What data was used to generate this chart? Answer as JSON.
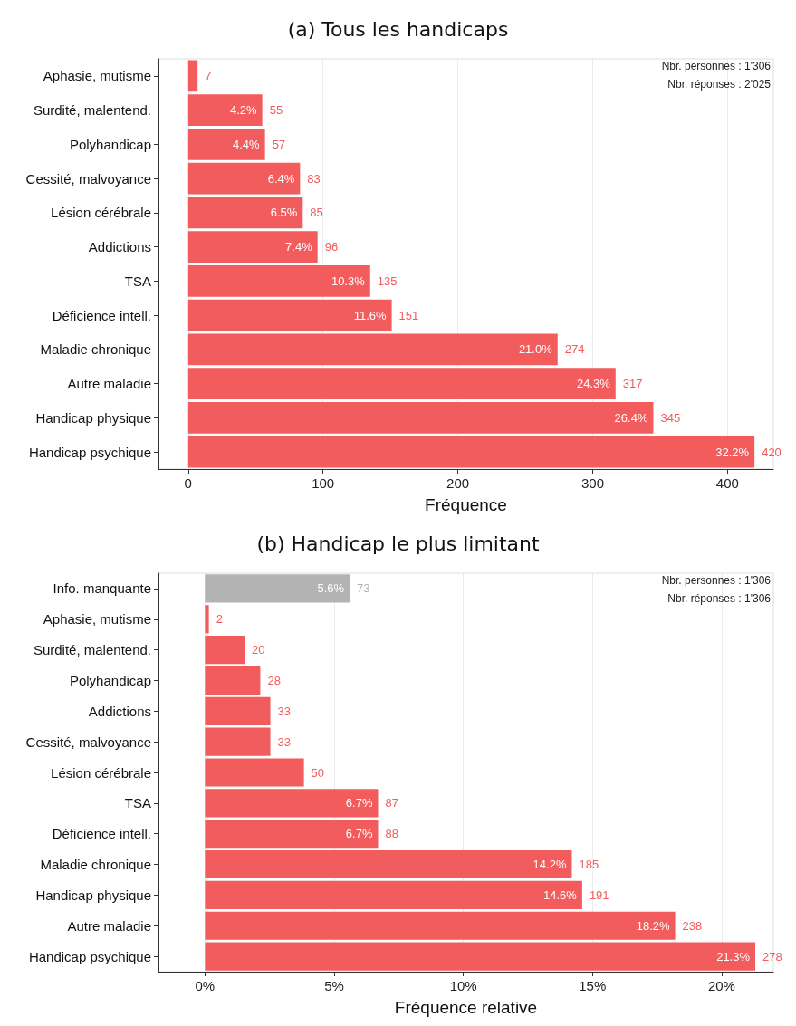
{
  "chart_data": [
    {
      "type": "bar",
      "orientation": "horizontal",
      "title": "(a) Tous les handicaps",
      "xlabel": "Fréquence",
      "categories": [
        "Aphasie, mutisme",
        "Surdité, malentend.",
        "Polyhandicap",
        "Cessité, malvoyance",
        "Lésion cérébrale",
        "Addictions",
        "TSA",
        "Déficience intell.",
        "Maladie chronique",
        "Autre maladie",
        "Handicap physique",
        "Handicap psychique"
      ],
      "values": [
        7,
        55,
        57,
        83,
        85,
        96,
        135,
        151,
        274,
        317,
        345,
        420
      ],
      "colors": [
        "#f25c5c",
        "#f25c5c",
        "#f25c5c",
        "#f25c5c",
        "#f25c5c",
        "#f25c5c",
        "#f25c5c",
        "#f25c5c",
        "#f25c5c",
        "#f25c5c",
        "#f25c5c",
        "#f25c5c"
      ],
      "data_labels": true,
      "xlim": [
        -22,
        434
      ],
      "xticks": [
        0,
        100,
        200,
        300,
        400
      ],
      "grid": "x",
      "annotations": [
        "Nbr. personnes : 1'306",
        "Nbr. réponses : 2'025",
        {
          "text": "4.2%",
          "x": 55,
          "y": "Surdité, malentend."
        },
        {
          "text": "4.4%",
          "x": 57,
          "y": "Polyhandicap"
        },
        {
          "text": "6.4%",
          "x": 83,
          "y": "Cessité, malvoyance"
        },
        {
          "text": "6.5%",
          "x": 85,
          "y": "Lésion cérébrale"
        },
        {
          "text": "7.4%",
          "x": 96,
          "y": "Addictions"
        },
        {
          "text": "10.3%",
          "x": 135,
          "y": "TSA"
        },
        {
          "text": "11.6%",
          "x": 151,
          "y": "Déficience intell."
        },
        {
          "text": "21.0%",
          "x": 274,
          "y": "Maladie chronique"
        },
        {
          "text": "24.3%",
          "x": 317,
          "y": "Autre maladie"
        },
        {
          "text": "26.4%",
          "x": 345,
          "y": "Handicap physique"
        },
        {
          "text": "32.2%",
          "x": 420,
          "y": "Handicap psychique"
        }
      ]
    },
    {
      "type": "bar",
      "orientation": "horizontal",
      "title": "(b) Handicap le plus limitant",
      "xlabel": "Fréquence relative",
      "categories": [
        "Info. manquante",
        "Aphasie, mutisme",
        "Surdité, malentend.",
        "Polyhandicap",
        "Addictions",
        "Cessité, malvoyance",
        "Lésion cérébrale",
        "TSA",
        "Déficience intell.",
        "Maladie chronique",
        "Handicap physique",
        "Autre maladie",
        "Handicap psychique"
      ],
      "values": [
        5.6,
        0.15,
        1.53,
        2.14,
        2.53,
        2.53,
        3.83,
        6.7,
        6.7,
        14.2,
        14.6,
        18.2,
        21.3
      ],
      "colors": [
        "#b3b3b3",
        "#f25c5c",
        "#f25c5c",
        "#f25c5c",
        "#f25c5c",
        "#f25c5c",
        "#f25c5c",
        "#f25c5c",
        "#f25c5c",
        "#f25c5c",
        "#f25c5c",
        "#f25c5c",
        "#f25c5c"
      ],
      "value_labels": [
        "5.6%",
        null,
        null,
        null,
        null,
        null,
        null,
        "6.7%",
        "6.7%",
        "14.2%",
        "14.6%",
        "18.2%",
        "21.3%"
      ],
      "xlim": [
        -1.8,
        22
      ],
      "xticks": [
        {
          "value": 0,
          "label": "0%"
        },
        {
          "value": 5,
          "label": "5%"
        },
        {
          "value": 10,
          "label": "10%"
        },
        {
          "value": 15,
          "label": "15%"
        },
        {
          "value": 20,
          "label": "20%"
        }
      ],
      "grid": "x",
      "annotations": [
        "Nbr. personnes : 1'306",
        "Nbr. réponses : 1'306",
        {
          "text": "73",
          "x": 5.6,
          "y": "Info. manquante"
        },
        {
          "text": "2",
          "x": 0.15,
          "y": "Aphasie, mutisme"
        },
        {
          "text": "20",
          "x": 1.53,
          "y": "Surdité, malentend."
        },
        {
          "text": "28",
          "x": 2.14,
          "y": "Polyhandicap"
        },
        {
          "text": "33",
          "x": 2.53,
          "y": "Addictions"
        },
        {
          "text": "33",
          "x": 2.53,
          "y": "Cessité, malvoyance"
        },
        {
          "text": "50",
          "x": 3.83,
          "y": "Lésion cérébrale"
        },
        {
          "text": "87",
          "x": 6.7,
          "y": "TSA"
        },
        {
          "text": "88",
          "x": 6.7,
          "y": "Déficience intell."
        },
        {
          "text": "185",
          "x": 14.2,
          "y": "Maladie chronique"
        },
        {
          "text": "191",
          "x": 14.6,
          "y": "Handicap physique"
        },
        {
          "text": "238",
          "x": 18.2,
          "y": "Autre maladie"
        },
        {
          "text": "278",
          "x": 21.3,
          "y": "Handicap psychique"
        }
      ]
    }
  ]
}
